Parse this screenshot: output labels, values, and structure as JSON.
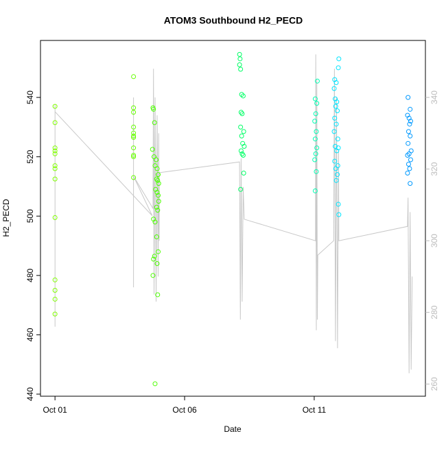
{
  "chart_data": {
    "type": "scatter",
    "title": "ATOM3 Southbound H2_PECD",
    "x_label": "Date",
    "y_label": "H2_PECD",
    "xlim": [
      -0.56,
      14.29
    ],
    "xticks": [
      {
        "value": 0,
        "label": "Oct 01"
      },
      {
        "value": 5,
        "label": "Oct 06"
      },
      {
        "value": 10,
        "label": "Oct 11"
      }
    ],
    "ylim": [
      439.3,
      559.2
    ],
    "yticks": [
      440,
      460,
      480,
      500,
      520,
      540
    ],
    "y2lim": [
      256.6,
      355.9
    ],
    "y2ticks": [
      260,
      280,
      300,
      320,
      340
    ],
    "series": [
      {
        "color": "#80ff00",
        "x": [
          0,
          0,
          0,
          0,
          0,
          0,
          0,
          0,
          0,
          0,
          0,
          0,
          0
        ],
        "values": [
          537,
          531.5,
          523,
          522,
          521,
          517,
          516,
          512.5,
          499.5,
          478.5,
          475,
          472,
          467
        ]
      },
      {
        "color": "#66ff00",
        "x": [
          3.03,
          3.03,
          3.03,
          3.03,
          3.03,
          3.03,
          3.03,
          3.03,
          3.03,
          3.03,
          3.03
        ],
        "values": [
          547,
          536.5,
          535,
          530,
          528,
          527,
          526.5,
          523,
          520.5,
          520,
          513
        ]
      },
      {
        "color": "#4cff00",
        "x": [
          3.78,
          3.8,
          3.84,
          3.76,
          3.82,
          3.9,
          3.86,
          3.94,
          3.98,
          3.92,
          3.96,
          4.0,
          3.88,
          3.94,
          3.98,
          4.0,
          3.92,
          3.96,
          3.8,
          3.86,
          3.92,
          3.98,
          3.84,
          3.8,
          3.94,
          3.78,
          3.96,
          3.86
        ],
        "values": [
          536.5,
          536,
          531.5,
          522.5,
          520,
          519,
          517,
          516,
          514,
          512.5,
          512,
          511,
          509,
          508,
          507,
          505,
          503,
          502,
          499,
          498,
          493,
          488,
          486.5,
          485.5,
          484,
          480,
          473.5,
          443.5
        ]
      },
      {
        "color": "#00ff66",
        "x": [
          7.12,
          7.14,
          7.12,
          7.16,
          7.2,
          7.26,
          7.18,
          7.22,
          7.16,
          7.28,
          7.2,
          7.24,
          7.3,
          7.18,
          7.22,
          7.26,
          7.28,
          7.16
        ],
        "values": [
          554.5,
          553,
          551,
          549.5,
          541,
          540.5,
          535,
          534.5,
          530,
          528.5,
          527,
          524.5,
          523.5,
          522,
          521,
          520.5,
          514.5,
          509
        ]
      },
      {
        "color": "#00ffb3",
        "x": [
          10.12,
          10.04,
          10.1,
          10.06,
          10.02,
          10.08,
          10.04,
          10.1,
          10.06,
          10.02,
          10.08,
          10.04
        ],
        "values": [
          545.5,
          539.5,
          538,
          534.5,
          532,
          528.5,
          526,
          523,
          521,
          519,
          515,
          508.5
        ]
      },
      {
        "color": "#00e5ff",
        "x": [
          10.95,
          10.93,
          10.79,
          10.85,
          10.77,
          10.81,
          10.87,
          10.83,
          10.89,
          10.79,
          10.85,
          10.77,
          10.91,
          10.81,
          10.93,
          10.87,
          10.79,
          10.91,
          10.83,
          10.89,
          10.85,
          10.93,
          10.95
        ],
        "values": [
          553,
          550,
          546,
          545,
          543,
          539.5,
          538.5,
          537,
          535.5,
          533,
          531,
          528.5,
          526,
          523.5,
          523,
          522,
          518.5,
          517,
          516,
          514,
          512,
          504,
          500.5
        ]
      },
      {
        "color": "#0099ff",
        "x": [
          13.62,
          13.7,
          13.6,
          13.66,
          13.72,
          13.68,
          13.64,
          13.7,
          13.62,
          13.74,
          13.66,
          13.6,
          13.72,
          13.64,
          13.68,
          13.6,
          13.7
        ],
        "values": [
          540,
          536,
          534,
          533,
          532,
          531,
          528.5,
          527,
          524.5,
          522,
          521,
          520.5,
          519,
          517.5,
          516,
          514.5,
          511
        ]
      },
      {
        "axis": "y2",
        "color": "#c8c8c8",
        "line": true,
        "x": [
          0,
          0,
          0,
          3.75,
          3.03,
          3.03,
          3.03,
          3.03,
          3.78,
          3.8,
          3.82,
          3.86,
          3.9,
          3.94,
          3.98,
          4.0,
          4.02,
          4.02,
          7.12,
          7.15,
          7.18,
          7.22,
          7.26,
          7.3,
          10.05,
          10.06,
          10.08,
          10.1,
          10.12,
          10.14,
          10.75,
          10.78,
          10.82,
          10.86,
          10.9,
          10.94,
          10.95,
          13.6,
          13.62,
          13.66,
          13.7,
          13.74,
          13.78
        ],
        "values": [
          338,
          276,
          336,
          307,
          318,
          340,
          287,
          318,
          309,
          348,
          285,
          340,
          283,
          335,
          290,
          330,
          300,
          319,
          322,
          278,
          323,
          283,
          315,
          306,
          300,
          352,
          275,
          345,
          278,
          296,
          300,
          348,
          272,
          340,
          270,
          325,
          300,
          304,
          312,
          263,
          308,
          264,
          290
        ]
      }
    ]
  }
}
